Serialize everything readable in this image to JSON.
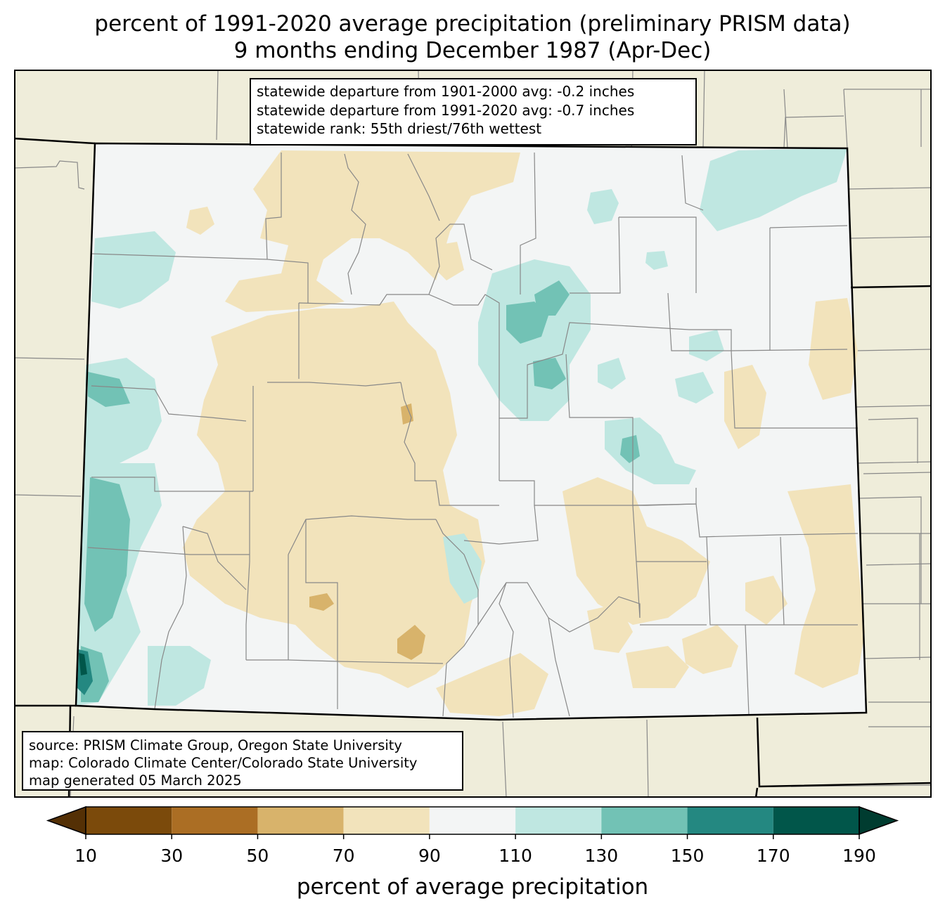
{
  "title": {
    "line1": "percent of 1991-2020 average precipitation (preliminary PRISM data)",
    "line2": "9 months ending December 1987 (Apr-Dec)"
  },
  "stats_box": {
    "line1": "statewide departure from 1901-2000 avg: -0.2 inches",
    "line2": "statewide departure from 1991-2020 avg: -0.7 inches",
    "line3": "statewide rank: 55th driest/76th wettest"
  },
  "source_box": {
    "line1": "source: PRISM Climate Group, Oregon State University",
    "line2": "map: Colorado Climate Center/Colorado State University",
    "line3": "map generated 05 March 2025"
  },
  "colorbar": {
    "label": "percent of average precipitation",
    "ticks": [
      "10",
      "30",
      "50",
      "70",
      "90",
      "110",
      "130",
      "150",
      "170",
      "190"
    ],
    "under_color": "#543005",
    "over_color": "#003c30",
    "colors": [
      "#7b4a0b",
      "#ab6e24",
      "#d8b36b",
      "#f2e3bb",
      "#f3f5f5",
      "#bfe7e1",
      "#72c2b5",
      "#248881",
      "#01564a"
    ]
  },
  "map": {
    "land_color": "#efedda",
    "state": "Colorado"
  }
}
